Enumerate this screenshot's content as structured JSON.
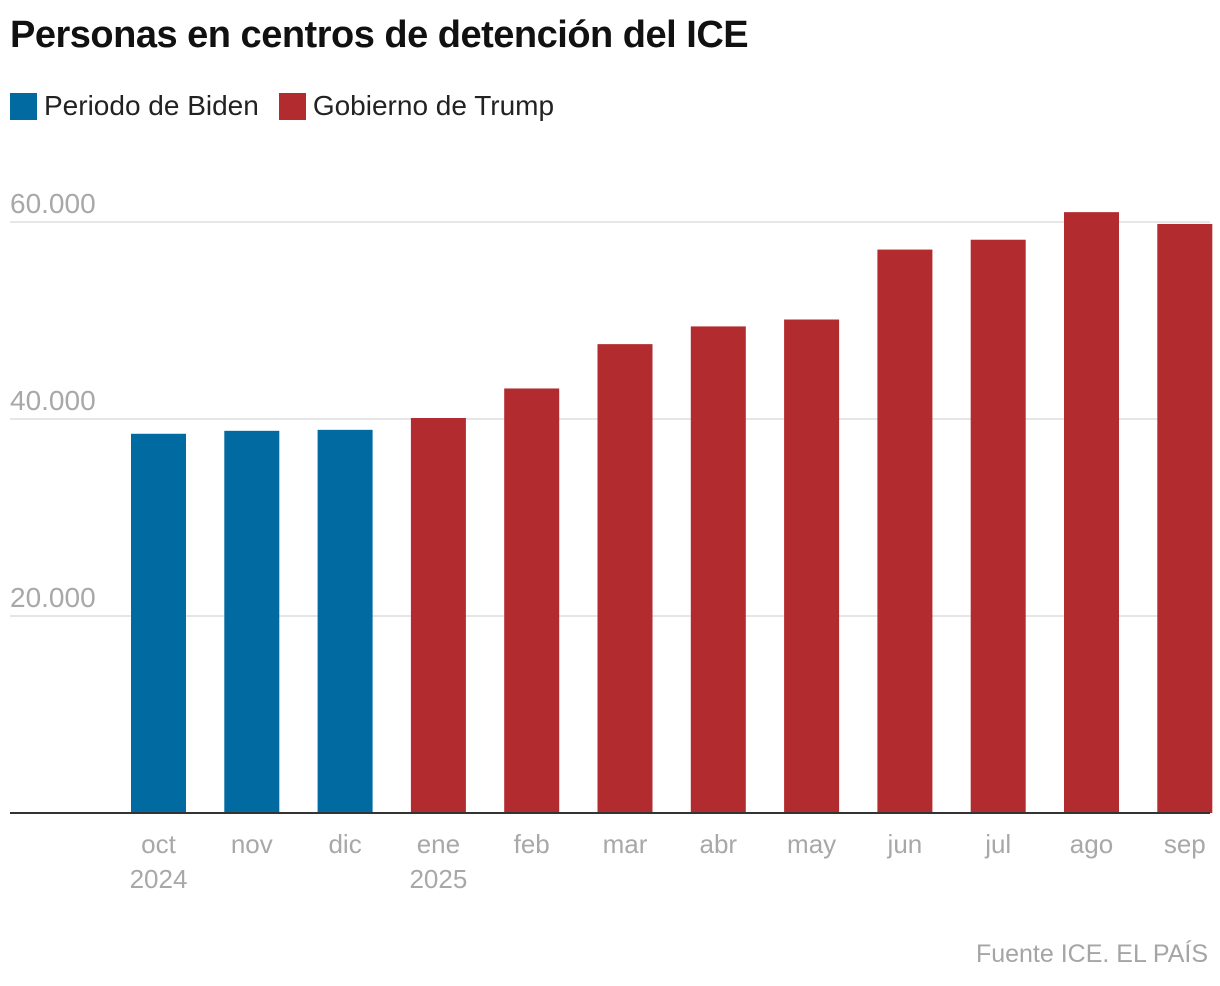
{
  "header": {
    "title": "Personas en centros de detención del ICE"
  },
  "legend": [
    {
      "label": "Periodo de Biden",
      "color": "#006aa1"
    },
    {
      "label": "Gobierno de Trump",
      "color": "#b22b2f"
    }
  ],
  "footer": {
    "source": "Fuente ICE. EL PAÍS"
  },
  "chart_data": {
    "type": "bar",
    "title": "Personas en centros de detención del ICE",
    "xlabel": "",
    "ylabel": "",
    "ylim": [
      0,
      60000
    ],
    "yticks": [
      20000,
      40000,
      60000
    ],
    "ytick_labels": [
      "20.000",
      "40.000",
      "60.000"
    ],
    "grid": true,
    "legend_position": "top-left",
    "categories": [
      "oct",
      "nov",
      "dic",
      "ene",
      "feb",
      "mar",
      "abr",
      "may",
      "jun",
      "jul",
      "ago",
      "sep"
    ],
    "sublabels": [
      "2024",
      "",
      "",
      "2025",
      "",
      "",
      "",
      "",
      "",
      "",
      "",
      ""
    ],
    "values": [
      38500,
      38800,
      38900,
      40100,
      43100,
      47600,
      49400,
      50100,
      57200,
      58200,
      61000,
      59800
    ],
    "series_group": [
      "Periodo de Biden",
      "Periodo de Biden",
      "Periodo de Biden",
      "Gobierno de Trump",
      "Gobierno de Trump",
      "Gobierno de Trump",
      "Gobierno de Trump",
      "Gobierno de Trump",
      "Gobierno de Trump",
      "Gobierno de Trump",
      "Gobierno de Trump",
      "Gobierno de Trump"
    ],
    "colors": {
      "Periodo de Biden": "#006aa1",
      "Gobierno de Trump": "#b22b2f",
      "grid": "#dddddd",
      "axis": "#333333"
    }
  }
}
